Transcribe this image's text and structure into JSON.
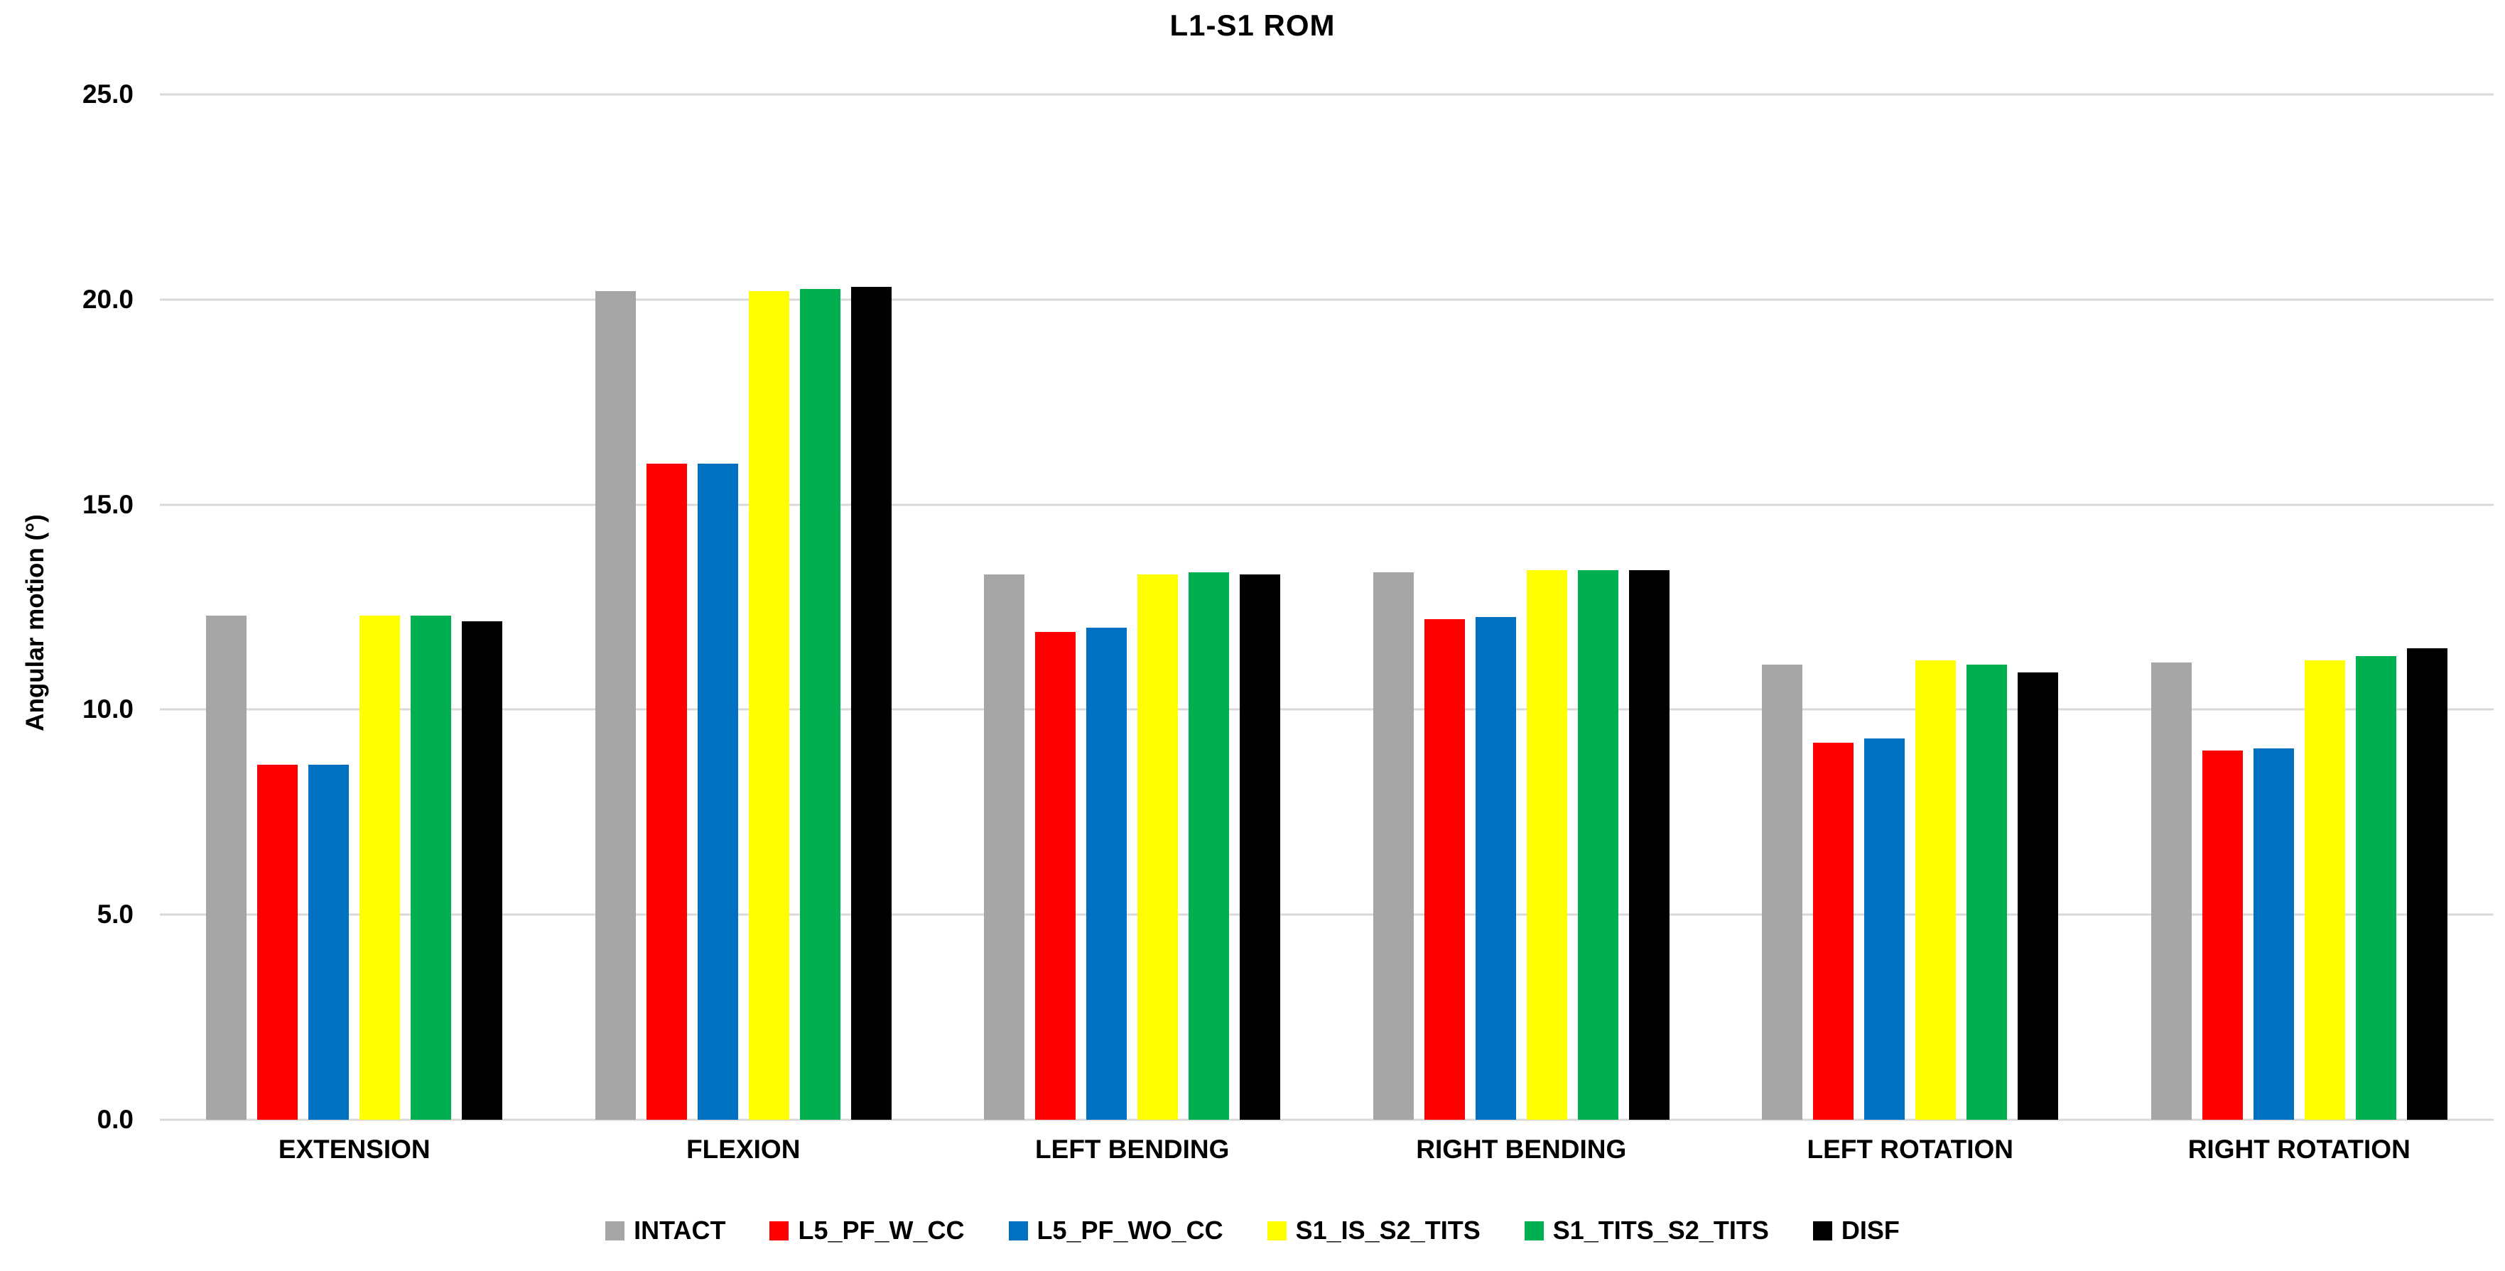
{
  "chart_data": {
    "type": "bar",
    "title": "L1-S1 ROM",
    "xlabel": "",
    "ylabel": "Angular motion (°)",
    "ylim": [
      0,
      25
    ],
    "ytick_labels": [
      "25.0",
      "20.0",
      "15.0",
      "10.0",
      "5.0",
      "0.0"
    ],
    "grid": true,
    "legend_position": "bottom",
    "categories": [
      "EXTENSION",
      "FLEXION",
      "LEFT BENDING",
      "RIGHT BENDING",
      "LEFT ROTATION",
      "RIGHT ROTATION"
    ],
    "series": [
      {
        "name": "INTACT",
        "color": "#A6A6A6",
        "values": [
          12.3,
          20.2,
          13.3,
          13.35,
          11.1,
          11.15
        ]
      },
      {
        "name": "L5_PF_W_CC",
        "color": "#FF0000",
        "values": [
          8.65,
          16.0,
          11.9,
          12.2,
          9.2,
          9.0
        ]
      },
      {
        "name": "L5_PF_WO_CC",
        "color": "#0070C0",
        "values": [
          8.65,
          16.0,
          12.0,
          12.25,
          9.3,
          9.05
        ]
      },
      {
        "name": "S1_IS_S2_TITS",
        "color": "#FFFF00",
        "values": [
          12.3,
          20.2,
          13.3,
          13.4,
          11.2,
          11.2
        ]
      },
      {
        "name": "S1_TITS_S2_TITS",
        "color": "#00B050",
        "values": [
          12.3,
          20.25,
          13.35,
          13.4,
          11.1,
          11.3
        ]
      },
      {
        "name": "DISF",
        "color": "#000000",
        "values": [
          12.15,
          20.3,
          13.3,
          13.4,
          10.9,
          11.5
        ]
      }
    ],
    "colors": {
      "background": "#FFFFFF",
      "gridline": "#D9D9D9",
      "text": "#000000"
    }
  }
}
